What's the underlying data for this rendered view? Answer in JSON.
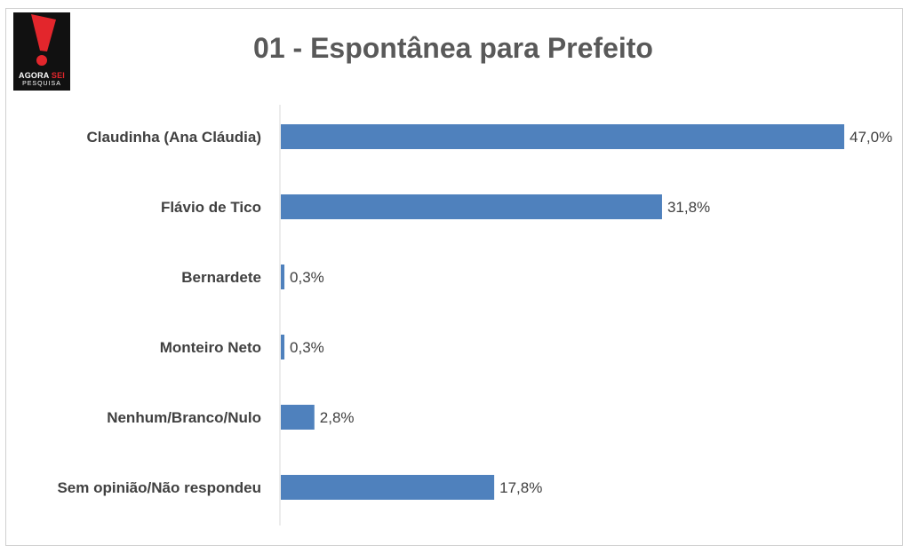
{
  "logo": {
    "brand_word1": "AGORA",
    "brand_word2": "SEI",
    "brand_sub": "PESQUISA",
    "colors": {
      "mark": "#e3262c",
      "background": "#111111"
    }
  },
  "chart_data": {
    "type": "bar",
    "orientation": "horizontal",
    "title": "01 - Espontânea para Prefeito",
    "categories": [
      "Claudinha (Ana Cláudia)",
      "Flávio de Tico",
      "Bernardete",
      "Monteiro Neto",
      "Nenhum/Branco/Nulo",
      "Sem opinião/Não respondeu"
    ],
    "values": [
      47.0,
      31.8,
      0.3,
      0.3,
      2.8,
      17.8
    ],
    "value_labels": [
      "47,0%",
      "31,8%",
      "0,3%",
      "0,3%",
      "2,8%",
      "17,8%"
    ],
    "xlim": [
      0,
      47
    ],
    "grid": false,
    "legend": "none",
    "bar_color": "#4f81bd"
  }
}
